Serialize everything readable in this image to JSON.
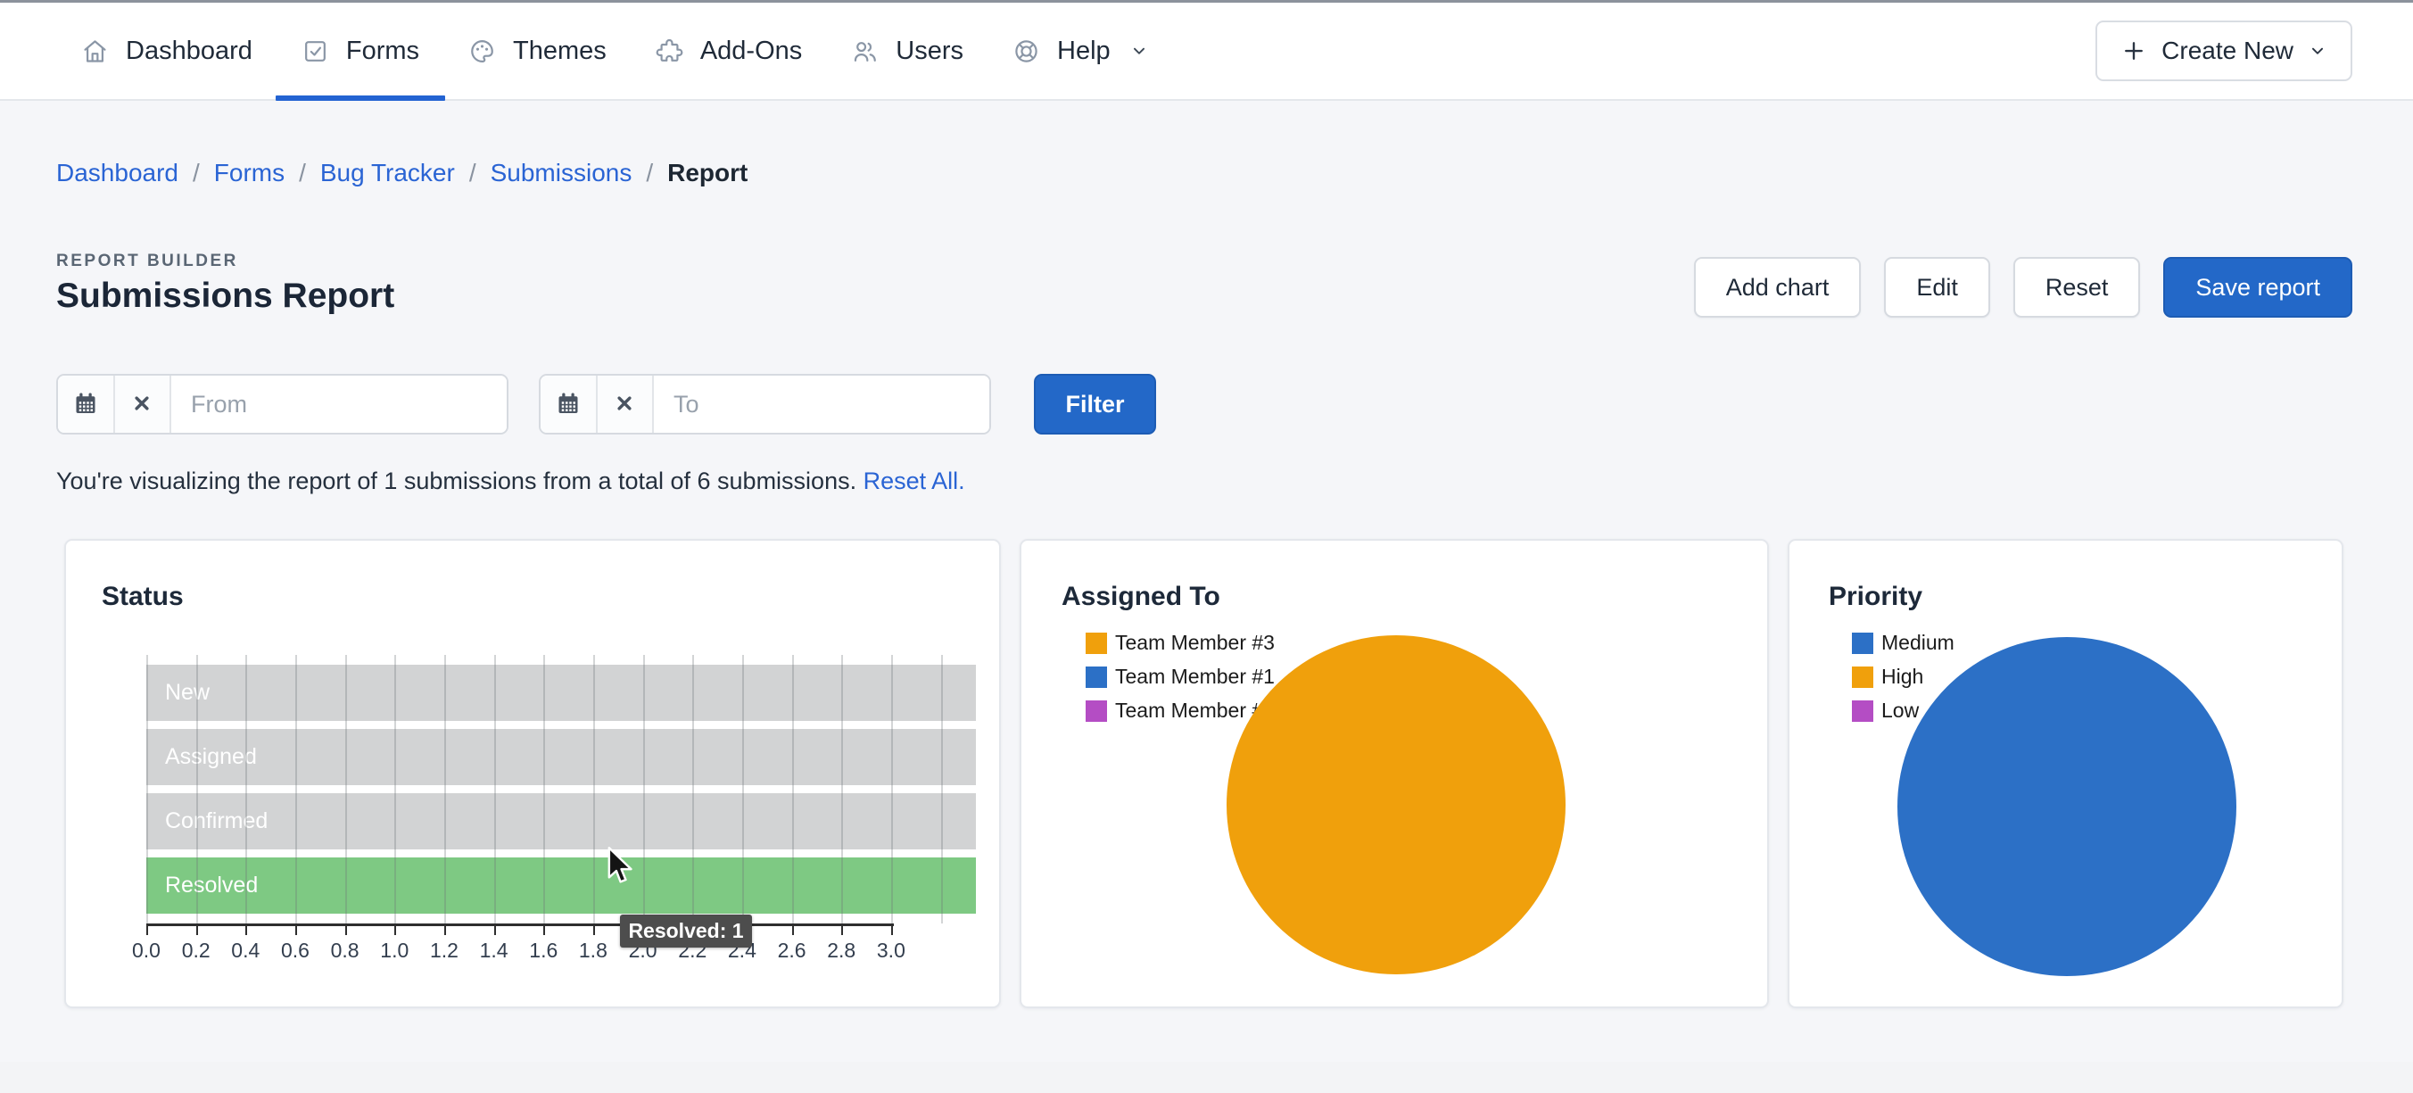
{
  "topbar": {
    "items": [
      {
        "label": "Dashboard",
        "icon": "home",
        "active": false
      },
      {
        "label": "Forms",
        "icon": "check-square",
        "active": true
      },
      {
        "label": "Themes",
        "icon": "palette",
        "active": false
      },
      {
        "label": "Add-Ons",
        "icon": "puzzle",
        "active": false
      },
      {
        "label": "Users",
        "icon": "users",
        "active": false
      },
      {
        "label": "Help",
        "icon": "life-buoy",
        "active": false,
        "has_dropdown": true
      }
    ],
    "create_new_label": "Create New"
  },
  "breadcrumb": {
    "separator": "/",
    "links": [
      "Dashboard",
      "Forms",
      "Bug Tracker",
      "Submissions"
    ],
    "current": "Report"
  },
  "header": {
    "eyebrow": "REPORT BUILDER",
    "title": "Submissions Report",
    "buttons": [
      {
        "label": "Add chart",
        "variant": "secondary"
      },
      {
        "label": "Edit",
        "variant": "secondary"
      },
      {
        "label": "Reset",
        "variant": "secondary"
      },
      {
        "label": "Save report",
        "variant": "primary"
      }
    ]
  },
  "filters": {
    "from_placeholder": "From",
    "to_placeholder": "To",
    "from_value": "",
    "to_value": "",
    "filter_label": "Filter"
  },
  "status_line": {
    "text": "You're visualizing the report of 1 submissions from a total of 6 submissions.",
    "link_label": "Reset All."
  },
  "colors": {
    "primary_blue": "#2368c8",
    "link_blue": "#2a64d4",
    "active_tab_underline": "#2363d2",
    "bar_gray": "#d2d3d4",
    "bar_green": "#7ec983",
    "pie_orange": "#f0a00c",
    "pie_blue": "#2c70c6",
    "legend_purple": "#b44dc4",
    "tooltip_bg": "#4d4d4d"
  },
  "chart_data": [
    {
      "type": "bar",
      "orientation": "horizontal",
      "title": "Status",
      "categories": [
        "New",
        "Assigned",
        "Confirmed",
        "Resolved"
      ],
      "values": [
        null,
        null,
        null,
        1
      ],
      "bar_render": "full-width",
      "bar_colors": [
        "#d2d3d4",
        "#d2d3d4",
        "#d2d3d4",
        "#7ec983"
      ],
      "label_color": "#ffffff",
      "xlim": [
        0.0,
        3.0
      ],
      "xtick_labels": [
        "0.0",
        "0.2",
        "0.4",
        "0.6",
        "0.8",
        "1.0",
        "1.2",
        "1.4",
        "1.6",
        "1.8",
        "2.0",
        "2.2",
        "2.4",
        "2.6",
        "2.8",
        "3.0"
      ],
      "grid": true,
      "tooltip": {
        "text": "Resolved: 1",
        "category": "Resolved",
        "value": 1
      }
    },
    {
      "type": "pie",
      "title": "Assigned To",
      "legend_position": "top-left",
      "legend": [
        {
          "label": "Team Member #3",
          "color": "#f0a00c"
        },
        {
          "label": "Team Member #1",
          "color": "#2c70c6"
        },
        {
          "label": "Team Member #2",
          "color": "#b44dc4"
        }
      ],
      "slices": [
        {
          "label": "Team Member #3",
          "value": 1,
          "fraction": 1.0,
          "color": "#f0a00c"
        }
      ]
    },
    {
      "type": "pie",
      "title": "Priority",
      "legend_position": "top-left",
      "legend": [
        {
          "label": "Medium",
          "color": "#2c70c6"
        },
        {
          "label": "High",
          "color": "#f0a00c"
        },
        {
          "label": "Low",
          "color": "#b44dc4"
        }
      ],
      "slices": [
        {
          "label": "Medium",
          "value": 1,
          "fraction": 1.0,
          "color": "#2c70c6"
        }
      ]
    }
  ]
}
